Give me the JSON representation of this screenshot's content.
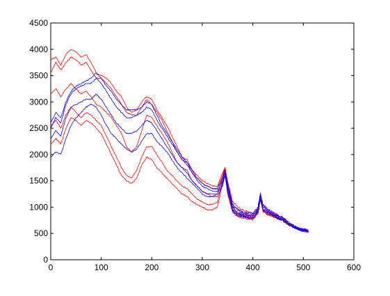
{
  "chart_data": {
    "type": "line",
    "title": "",
    "xlabel": "",
    "ylabel": "",
    "xlim": [
      0,
      600
    ],
    "ylim": [
      0,
      4500
    ],
    "x_ticks": [
      0,
      100,
      200,
      300,
      400,
      500,
      600
    ],
    "y_ticks": [
      0,
      500,
      1000,
      1500,
      2000,
      2500,
      3000,
      3500,
      4000,
      4500
    ],
    "grid": false,
    "legend": "none",
    "colors": {
      "red": "#ff0000",
      "blue": "#0000ff",
      "axes": "#000000",
      "background": "#ffffff"
    },
    "series": [
      {
        "color": "red",
        "x": [
          0,
          10,
          20,
          30,
          40,
          50,
          60,
          70,
          80,
          90,
          100,
          110,
          120,
          130,
          140,
          150,
          160,
          170,
          180,
          190,
          200,
          210,
          220,
          230,
          240,
          250,
          260,
          270,
          280,
          290,
          300,
          310,
          320,
          330,
          340,
          345,
          350,
          360,
          370,
          380,
          390,
          400,
          410,
          415,
          420,
          430,
          440,
          450,
          460,
          470,
          480,
          490,
          500,
          510
        ],
        "y": [
          3800,
          3850,
          3700,
          3900,
          4000,
          3950,
          3850,
          3900,
          3750,
          3550,
          3500,
          3450,
          3350,
          3200,
          3100,
          2900,
          2800,
          2850,
          3000,
          3100,
          3050,
          2850,
          2700,
          2550,
          2350,
          2150,
          1950,
          1900,
          1700,
          1600,
          1500,
          1450,
          1400,
          1400,
          1650,
          1750,
          1500,
          1100,
          1000,
          950,
          900,
          880,
          1000,
          1250,
          1050,
          950,
          900,
          850,
          800,
          700,
          650,
          600,
          580,
          560
        ]
      },
      {
        "color": "red",
        "x": [
          0,
          10,
          20,
          30,
          40,
          50,
          60,
          70,
          80,
          90,
          100,
          110,
          120,
          130,
          140,
          150,
          160,
          170,
          180,
          190,
          200,
          210,
          220,
          230,
          240,
          250,
          260,
          270,
          280,
          290,
          300,
          310,
          320,
          330,
          340,
          345,
          350,
          360,
          370,
          380,
          390,
          400,
          410,
          415,
          420,
          430,
          440,
          450,
          460,
          470,
          480,
          490,
          500,
          510
        ],
        "y": [
          3550,
          3750,
          3600,
          3750,
          3850,
          3800,
          3700,
          3750,
          3600,
          3450,
          3450,
          3350,
          3250,
          3100,
          2950,
          2800,
          2750,
          2750,
          2900,
          3050,
          2950,
          2800,
          2650,
          2450,
          2250,
          2050,
          1900,
          1850,
          1650,
          1550,
          1450,
          1400,
          1350,
          1350,
          1600,
          1750,
          1450,
          1050,
          950,
          900,
          870,
          850,
          950,
          1200,
          1000,
          920,
          880,
          820,
          780,
          700,
          650,
          600,
          570,
          550
        ]
      },
      {
        "color": "red",
        "x": [
          0,
          10,
          20,
          30,
          40,
          50,
          60,
          70,
          80,
          90,
          100,
          110,
          120,
          130,
          140,
          150,
          160,
          170,
          180,
          190,
          200,
          210,
          220,
          230,
          240,
          250,
          260,
          270,
          280,
          290,
          300,
          310,
          320,
          330,
          340,
          345,
          350,
          360,
          370,
          380,
          390,
          400,
          410,
          415,
          420,
          430,
          440,
          450,
          460,
          470,
          480,
          490,
          500,
          510
        ],
        "y": [
          3150,
          3250,
          3100,
          3250,
          3350,
          3250,
          3150,
          3200,
          3100,
          2950,
          2900,
          2800,
          2700,
          2550,
          2400,
          2150,
          2050,
          2150,
          2450,
          2750,
          2700,
          2550,
          2400,
          2250,
          2050,
          1850,
          1750,
          1700,
          1500,
          1400,
          1300,
          1250,
          1200,
          1250,
          1550,
          1750,
          1400,
          1000,
          900,
          850,
          820,
          800,
          900,
          1200,
          950,
          880,
          850,
          800,
          760,
          680,
          640,
          590,
          560,
          540
        ]
      },
      {
        "color": "red",
        "x": [
          0,
          10,
          20,
          30,
          40,
          50,
          60,
          70,
          80,
          90,
          100,
          110,
          120,
          130,
          140,
          150,
          160,
          170,
          180,
          190,
          200,
          210,
          220,
          230,
          240,
          250,
          260,
          270,
          280,
          290,
          300,
          310,
          320,
          330,
          340,
          345,
          350,
          360,
          370,
          380,
          390,
          400,
          410,
          415,
          420,
          430,
          440,
          450,
          460,
          470,
          480,
          490,
          500,
          510
        ],
        "y": [
          2550,
          2650,
          2500,
          2750,
          2900,
          2800,
          2700,
          2800,
          2750,
          2650,
          2550,
          2350,
          2150,
          1950,
          1750,
          1600,
          1550,
          1700,
          1950,
          2150,
          2150,
          2000,
          1850,
          1700,
          1600,
          1500,
          1400,
          1350,
          1250,
          1150,
          1100,
          1050,
          1050,
          1100,
          1500,
          1700,
          1300,
          950,
          850,
          820,
          800,
          780,
          880,
          1200,
          930,
          860,
          830,
          790,
          750,
          680,
          630,
          580,
          560,
          530
        ]
      },
      {
        "color": "red",
        "x": [
          0,
          10,
          20,
          30,
          40,
          50,
          60,
          70,
          80,
          90,
          100,
          110,
          120,
          130,
          140,
          150,
          160,
          170,
          180,
          190,
          200,
          210,
          220,
          230,
          240,
          250,
          260,
          270,
          280,
          290,
          300,
          310,
          320,
          330,
          340,
          345,
          350,
          360,
          370,
          380,
          390,
          400,
          410,
          415,
          420,
          430,
          440,
          450,
          460,
          470,
          480,
          490,
          500,
          510
        ],
        "y": [
          2200,
          2300,
          2200,
          2500,
          2700,
          2650,
          2550,
          2650,
          2600,
          2500,
          2400,
          2200,
          2000,
          1800,
          1600,
          1500,
          1450,
          1550,
          1800,
          1950,
          1900,
          1750,
          1650,
          1550,
          1450,
          1350,
          1250,
          1200,
          1100,
          1050,
          1000,
          950,
          950,
          1000,
          1450,
          1650,
          1250,
          900,
          830,
          800,
          780,
          770,
          860,
          1150,
          920,
          850,
          820,
          780,
          740,
          670,
          620,
          580,
          550,
          520
        ]
      },
      {
        "color": "blue",
        "x": [
          0,
          10,
          20,
          30,
          40,
          50,
          60,
          70,
          80,
          90,
          100,
          110,
          120,
          130,
          140,
          150,
          160,
          170,
          180,
          190,
          200,
          210,
          220,
          230,
          240,
          250,
          260,
          270,
          280,
          290,
          300,
          310,
          320,
          330,
          340,
          345,
          350,
          360,
          370,
          380,
          390,
          400,
          410,
          415,
          420,
          430,
          440,
          450,
          460,
          470,
          480,
          490,
          500,
          510
        ],
        "y": [
          2600,
          2800,
          2700,
          3000,
          3200,
          3300,
          3350,
          3400,
          3450,
          3550,
          3450,
          3300,
          3200,
          3050,
          2950,
          2850,
          2850,
          2850,
          2900,
          3000,
          2950,
          2750,
          2550,
          2400,
          2250,
          2100,
          1950,
          1850,
          1700,
          1550,
          1450,
          1400,
          1350,
          1350,
          1550,
          1700,
          1450,
          1050,
          950,
          900,
          880,
          870,
          980,
          1250,
          1050,
          950,
          900,
          850,
          800,
          710,
          650,
          600,
          580,
          560
        ]
      },
      {
        "color": "blue",
        "x": [
          0,
          10,
          20,
          30,
          40,
          50,
          60,
          70,
          80,
          90,
          100,
          110,
          120,
          130,
          140,
          150,
          160,
          170,
          180,
          190,
          200,
          210,
          220,
          230,
          240,
          250,
          260,
          270,
          280,
          290,
          300,
          310,
          320,
          330,
          340,
          345,
          350,
          360,
          370,
          380,
          390,
          400,
          410,
          415,
          420,
          430,
          440,
          450,
          460,
          470,
          480,
          490,
          500,
          510
        ],
        "y": [
          2500,
          2700,
          2600,
          2950,
          3150,
          3250,
          3300,
          3350,
          3350,
          3450,
          3350,
          3200,
          3050,
          2900,
          2800,
          2700,
          2700,
          2750,
          2800,
          2900,
          2850,
          2650,
          2500,
          2350,
          2200,
          2050,
          1900,
          1800,
          1650,
          1500,
          1400,
          1350,
          1300,
          1300,
          1500,
          1650,
          1400,
          1000,
          900,
          870,
          850,
          840,
          950,
          1200,
          1000,
          920,
          870,
          820,
          780,
          700,
          640,
          590,
          570,
          550
        ]
      },
      {
        "color": "blue",
        "x": [
          0,
          10,
          20,
          30,
          40,
          50,
          60,
          70,
          80,
          90,
          100,
          110,
          120,
          130,
          140,
          150,
          160,
          170,
          180,
          190,
          200,
          210,
          220,
          230,
          240,
          250,
          260,
          270,
          280,
          290,
          300,
          310,
          320,
          330,
          340,
          345,
          350,
          360,
          370,
          380,
          390,
          400,
          410,
          415,
          420,
          430,
          440,
          450,
          460,
          470,
          480,
          490,
          500,
          510
        ],
        "y": [
          2300,
          2450,
          2350,
          2700,
          2900,
          2950,
          3000,
          3050,
          3050,
          3150,
          3050,
          2900,
          2750,
          2600,
          2500,
          2400,
          2400,
          2450,
          2550,
          2650,
          2600,
          2450,
          2300,
          2150,
          2000,
          1850,
          1750,
          1650,
          1500,
          1400,
          1300,
          1250,
          1250,
          1250,
          1450,
          1600,
          1350,
          950,
          870,
          840,
          820,
          810,
          920,
          1150,
          960,
          890,
          850,
          800,
          760,
          690,
          630,
          580,
          560,
          540
        ]
      },
      {
        "color": "blue",
        "x": [
          0,
          10,
          20,
          30,
          40,
          50,
          60,
          70,
          80,
          90,
          100,
          110,
          120,
          130,
          140,
          150,
          160,
          170,
          180,
          190,
          200,
          210,
          220,
          230,
          240,
          250,
          260,
          270,
          280,
          290,
          300,
          310,
          320,
          330,
          340,
          345,
          350,
          360,
          370,
          380,
          390,
          400,
          410,
          415,
          420,
          430,
          440,
          450,
          460,
          470,
          480,
          490,
          500,
          510
        ],
        "y": [
          1950,
          2050,
          2000,
          2300,
          2550,
          2700,
          2800,
          2900,
          2950,
          2900,
          2750,
          2550,
          2400,
          2300,
          2200,
          2100,
          2050,
          2100,
          2250,
          2400,
          2400,
          2250,
          2150,
          2050,
          1900,
          1750,
          1650,
          1550,
          1450,
          1350,
          1250,
          1200,
          1200,
          1200,
          1400,
          1600,
          1300,
          930,
          850,
          820,
          800,
          790,
          900,
          1150,
          950,
          880,
          840,
          790,
          750,
          680,
          620,
          570,
          550,
          530
        ]
      }
    ]
  }
}
